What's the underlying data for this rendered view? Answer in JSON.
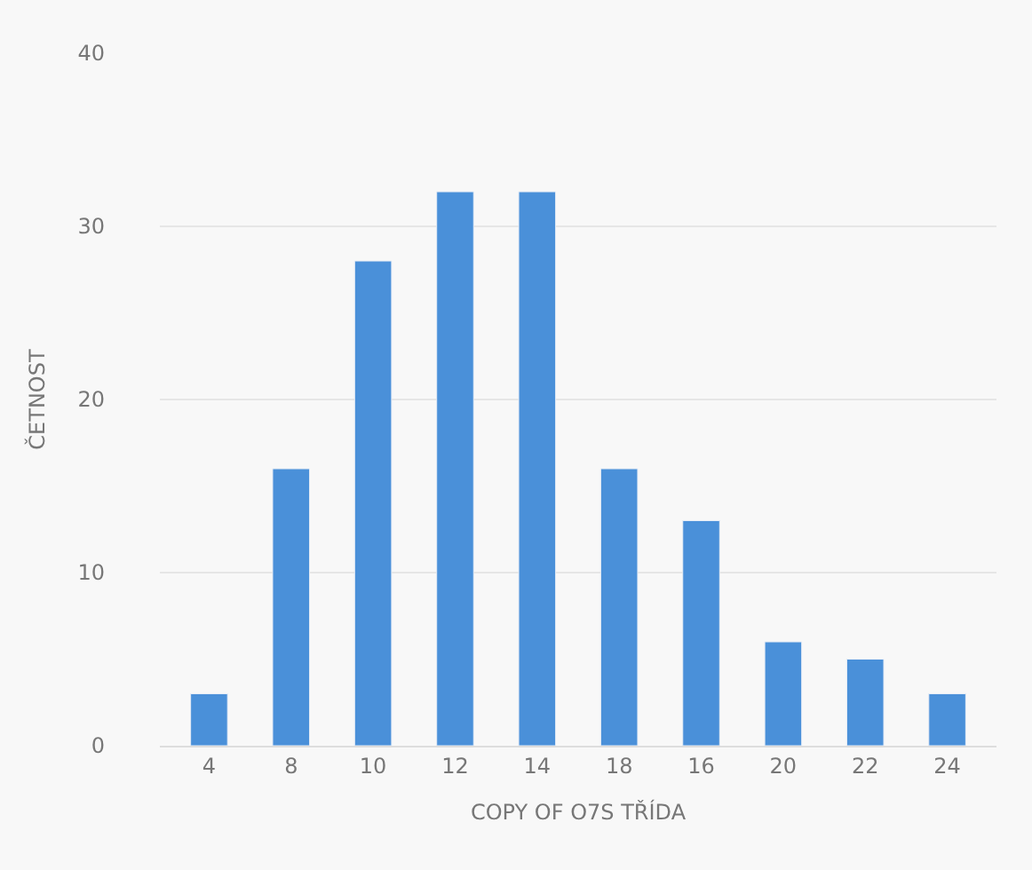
{
  "chart_data": {
    "type": "bar",
    "xlabel": "COPY OF O7S TŘÍDA",
    "ylabel": "ČETNOST",
    "categories": [
      "4",
      "8",
      "10",
      "12",
      "14",
      "18",
      "16",
      "20",
      "22",
      "24"
    ],
    "values": [
      3,
      16,
      28,
      32,
      32,
      16,
      13,
      6,
      5,
      3
    ],
    "color": "#4a90d9",
    "ylim": [
      0,
      40
    ],
    "yticks": [
      0,
      10,
      20,
      30,
      40
    ],
    "grid": "y"
  }
}
